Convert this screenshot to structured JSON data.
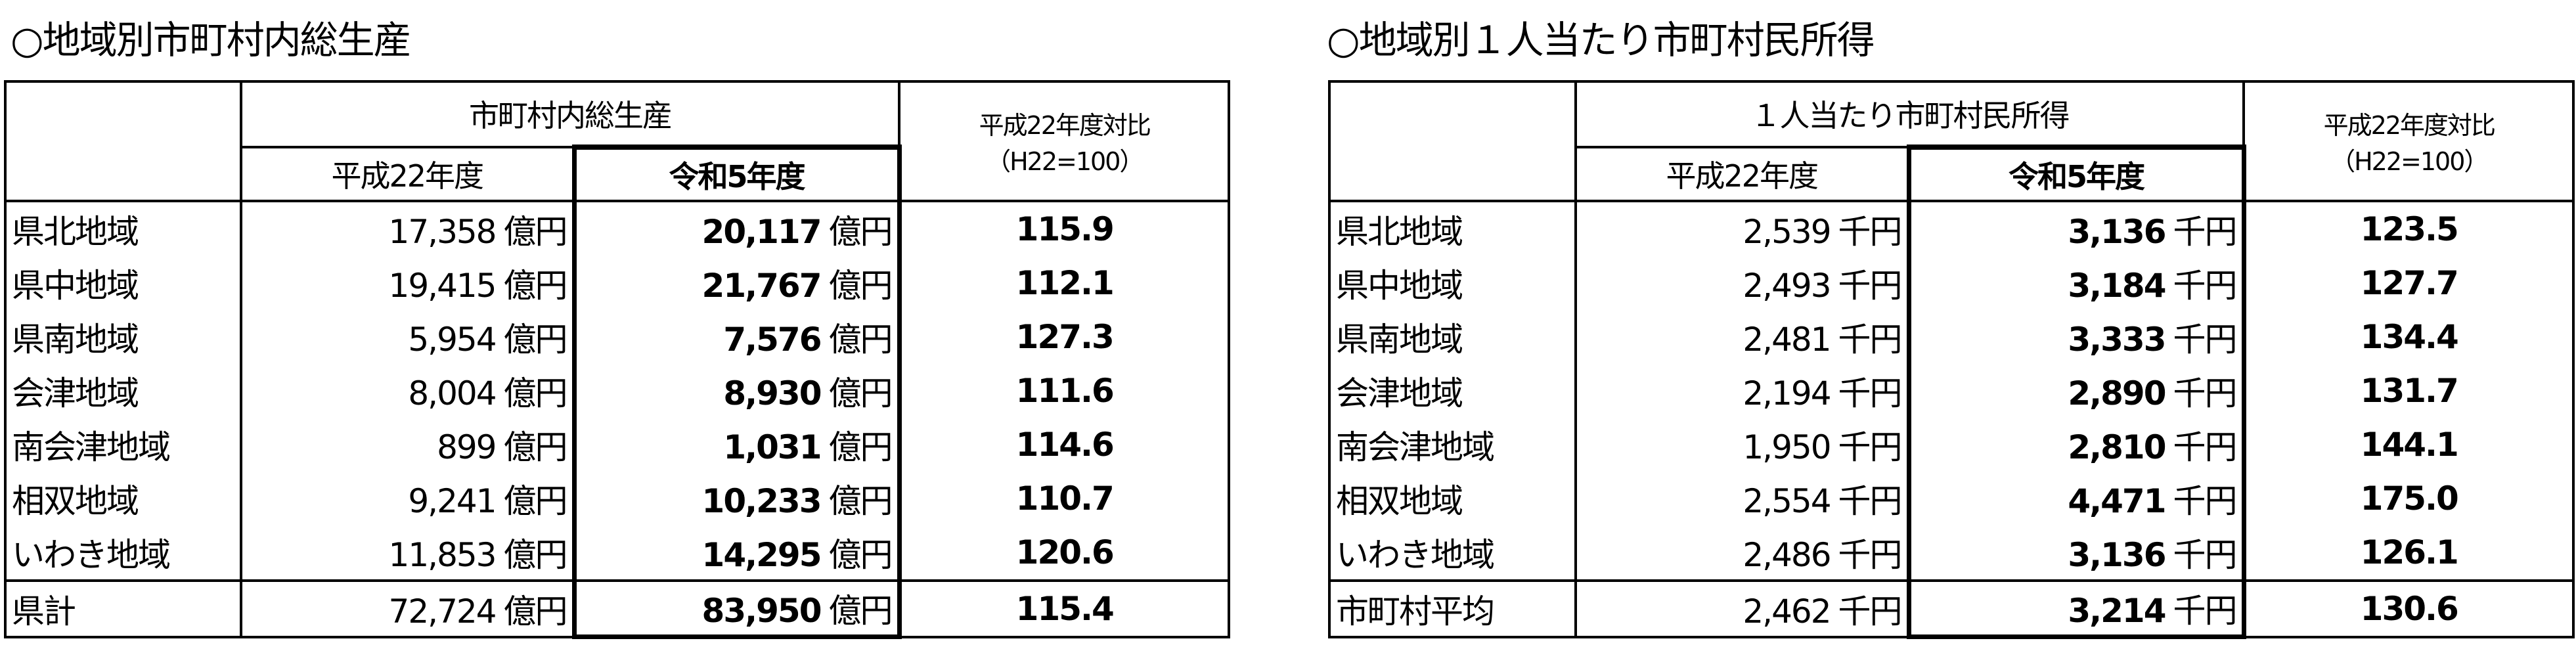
{
  "left": {
    "title": "○地域別市町村内総生産",
    "group_header": "市町村内総生産",
    "col_h22": "平成22年度",
    "col_r5": "令和5年度",
    "ratio_header": "平成22年度対比",
    "ratio_sub": "（H22=100）",
    "unit": "億円",
    "rows": [
      {
        "name": "県北地域",
        "h22": "17,358",
        "r5": "20,117",
        "ratio": "115.9"
      },
      {
        "name": "県中地域",
        "h22": "19,415",
        "r5": "21,767",
        "ratio": "112.1"
      },
      {
        "name": "県南地域",
        "h22": "5,954",
        "r5": "7,576",
        "ratio": "127.3"
      },
      {
        "name": "会津地域",
        "h22": "8,004",
        "r5": "8,930",
        "ratio": "111.6"
      },
      {
        "name": "南会津地域",
        "h22": "899",
        "r5": "1,031",
        "ratio": "114.6"
      },
      {
        "name": "相双地域",
        "h22": "9,241",
        "r5": "10,233",
        "ratio": "110.7"
      },
      {
        "name": "いわき地域",
        "h22": "11,853",
        "r5": "14,295",
        "ratio": "120.6"
      }
    ],
    "total": {
      "name": "県計",
      "h22": "72,724",
      "r5": "83,950",
      "ratio": "115.4"
    }
  },
  "right": {
    "title": "○地域別１人当たり市町村民所得",
    "group_header": "１人当たり市町村民所得",
    "col_h22": "平成22年度",
    "col_r5": "令和5年度",
    "ratio_header": "平成22年度対比",
    "ratio_sub": "（H22=100）",
    "unit": "千円",
    "rows": [
      {
        "name": "県北地域",
        "h22": "2,539",
        "r5": "3,136",
        "ratio": "123.5"
      },
      {
        "name": "県中地域",
        "h22": "2,493",
        "r5": "3,184",
        "ratio": "127.7"
      },
      {
        "name": "県南地域",
        "h22": "2,481",
        "r5": "3,333",
        "ratio": "134.4"
      },
      {
        "name": "会津地域",
        "h22": "2,194",
        "r5": "2,890",
        "ratio": "131.7"
      },
      {
        "name": "南会津地域",
        "h22": "1,950",
        "r5": "2,810",
        "ratio": "144.1"
      },
      {
        "name": "相双地域",
        "h22": "2,554",
        "r5": "4,471",
        "ratio": "175.0"
      },
      {
        "name": "いわき地域",
        "h22": "2,486",
        "r5": "3,136",
        "ratio": "126.1"
      }
    ],
    "total": {
      "name": "市町村平均",
      "h22": "2,462",
      "r5": "3,214",
      "ratio": "130.6"
    }
  }
}
